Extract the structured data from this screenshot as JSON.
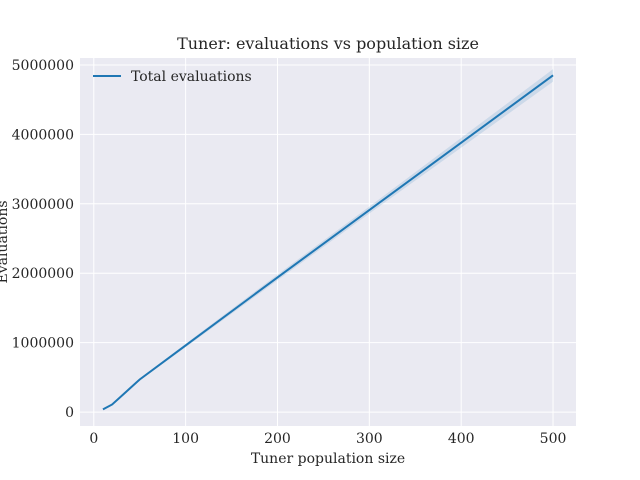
{
  "chart_data": {
    "type": "line",
    "title": "Tuner: evaluations vs population size",
    "xlabel": "Tuner population size",
    "ylabel": "Evaluations",
    "xlim": [
      -15,
      525
    ],
    "ylim": [
      -200000,
      5100000
    ],
    "xticks": [
      0,
      100,
      200,
      300,
      400,
      500
    ],
    "yticks": [
      0,
      1000000,
      2000000,
      3000000,
      4000000,
      5000000
    ],
    "xtick_labels": [
      "0",
      "100",
      "200",
      "300",
      "400",
      "500"
    ],
    "ytick_labels": [
      "0",
      "1000000",
      "2000000",
      "3000000",
      "4000000",
      "5000000"
    ],
    "grid": true,
    "legend_position": "upper-left",
    "series": [
      {
        "name": "Total evaluations",
        "color": "#1f77b4",
        "x": [
          10,
          20,
          50,
          100,
          200,
          300,
          400,
          500
        ],
        "y": [
          40000,
          110000,
          470000,
          960000,
          1940000,
          2910000,
          3880000,
          4850000
        ],
        "band_low": [
          35000,
          100000,
          455000,
          935000,
          1900000,
          2860000,
          3810000,
          4760000
        ],
        "band_high": [
          45000,
          120000,
          485000,
          985000,
          1980000,
          2960000,
          3950000,
          4940000
        ]
      }
    ]
  }
}
